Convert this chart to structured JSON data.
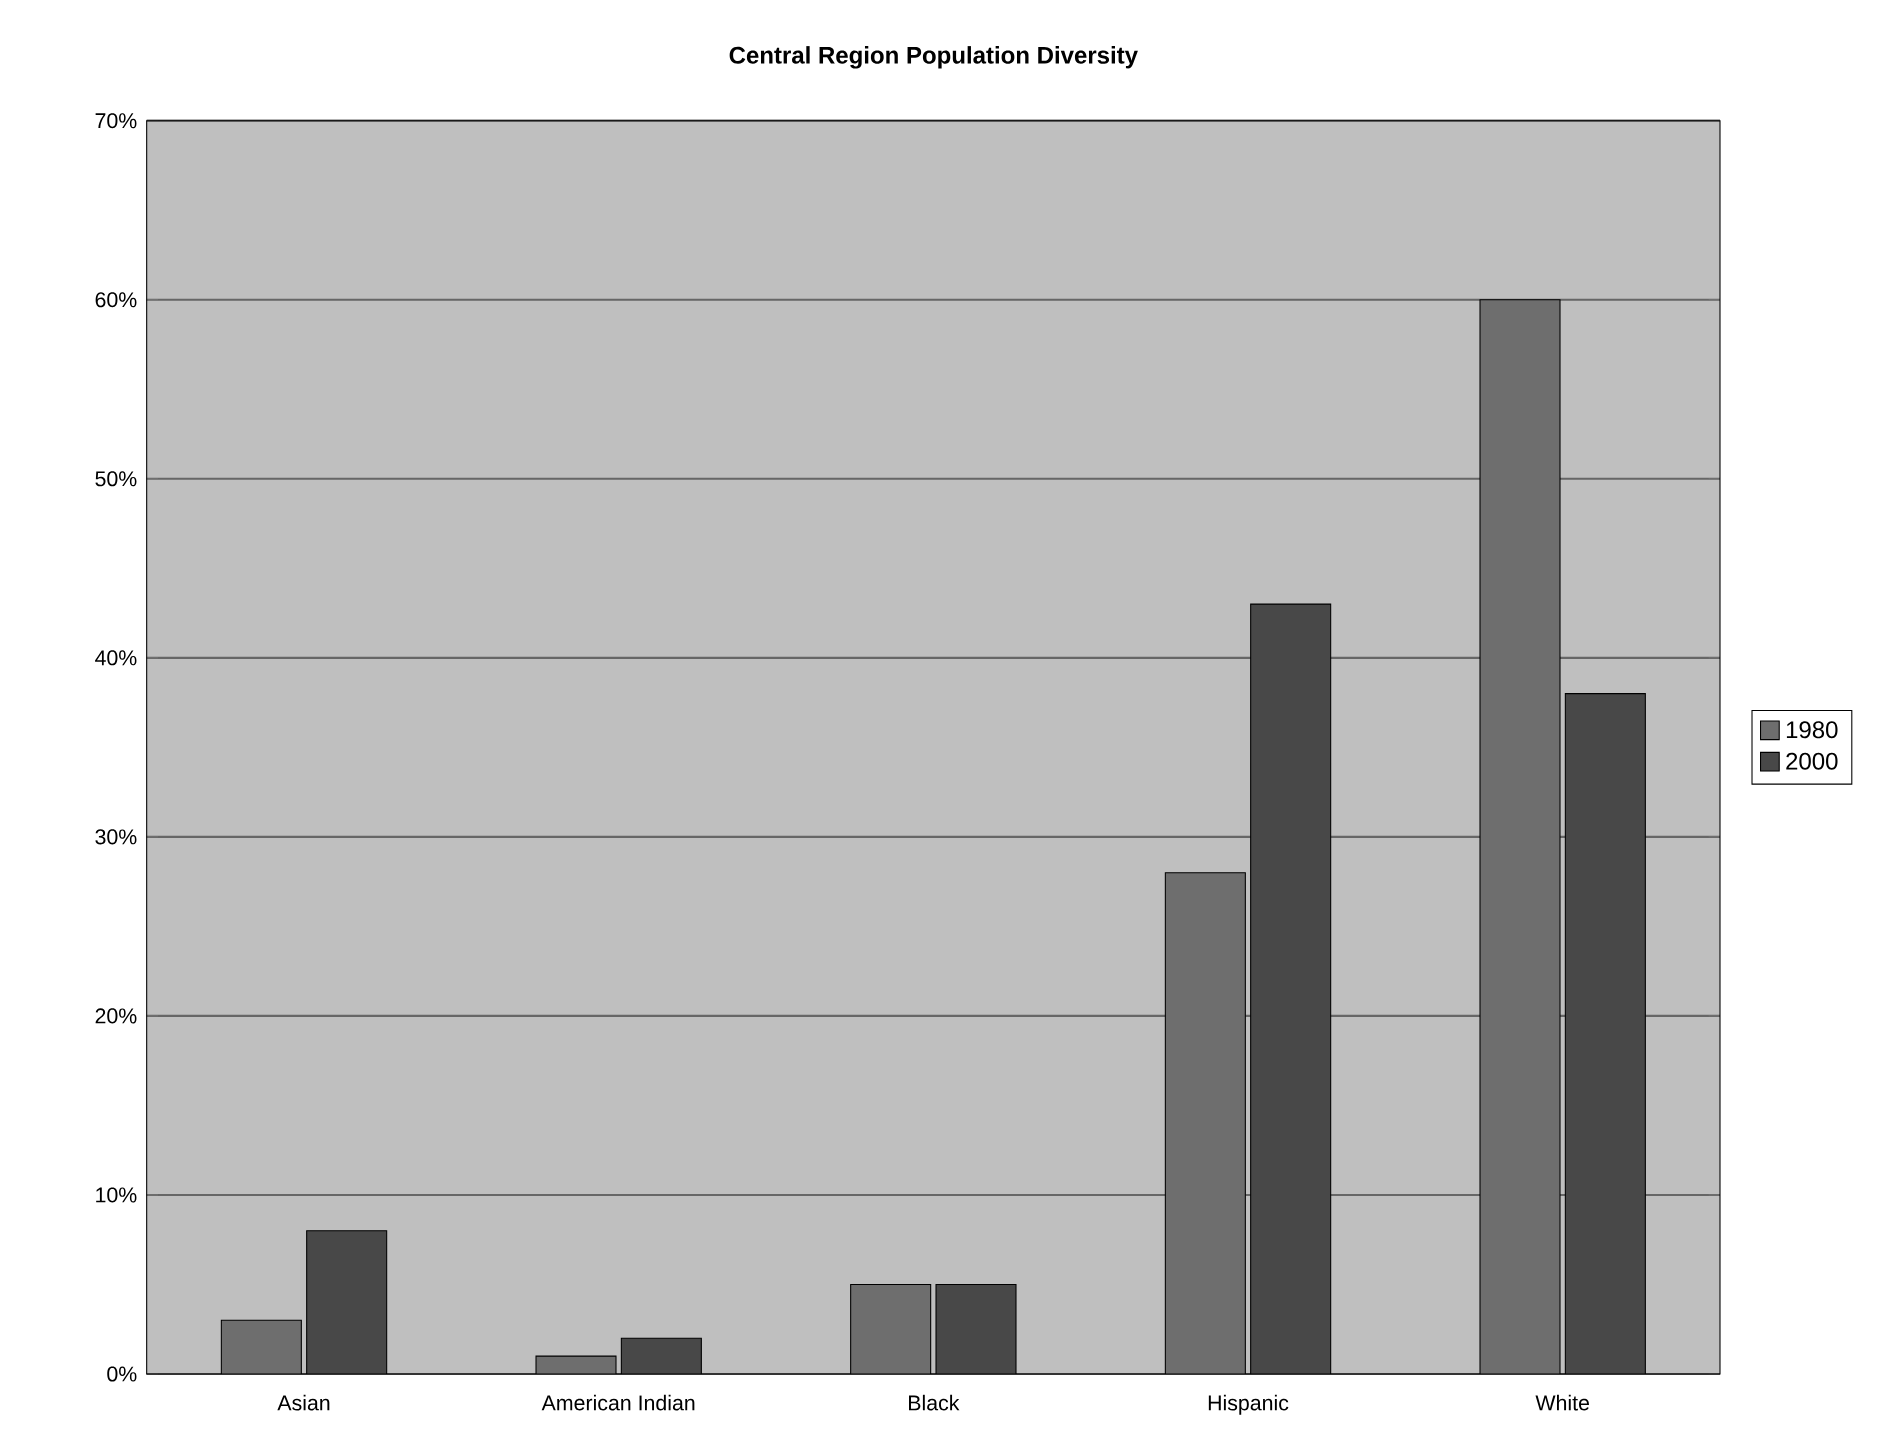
{
  "chart_data": {
    "type": "bar",
    "title": "Central Region Population Diversity",
    "categories": [
      "Asian",
      "American Indian",
      "Black",
      "Hispanic",
      "White"
    ],
    "series": [
      {
        "name": "1980",
        "color": "#6e6e6e",
        "values": [
          3,
          1,
          5,
          28,
          60
        ]
      },
      {
        "name": "2000",
        "color": "#484848",
        "values": [
          8,
          2,
          5,
          43,
          38
        ]
      }
    ],
    "ylim": [
      0,
      70
    ],
    "yticks": [
      {
        "value": 0,
        "label": "0%"
      },
      {
        "value": 10,
        "label": "10%"
      },
      {
        "value": 20,
        "label": "20%"
      },
      {
        "value": 30,
        "label": "30%"
      },
      {
        "value": 40,
        "label": "40%"
      },
      {
        "value": 50,
        "label": "50%"
      },
      {
        "value": 60,
        "label": "60%"
      },
      {
        "value": 70,
        "label": "70%"
      }
    ],
    "grid": "y",
    "legend": "right"
  }
}
